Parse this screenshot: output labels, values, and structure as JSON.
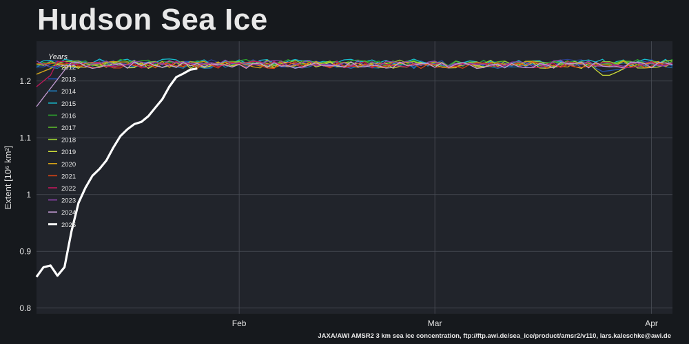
{
  "title": "Hudson Sea Ice",
  "credit": "JAXA/AWI AMSR2 3 km sea ice concentration, ftp://ftp.awi.de/sea_ice/product/amsr2/v110, lars.kaleschke@awi.de",
  "chart_data": {
    "type": "line",
    "title": "Hudson Sea Ice",
    "xlabel": "",
    "ylabel": "Extent [10⁶ km²]",
    "x_ticks": [
      "Feb",
      "Mar",
      "Apr"
    ],
    "x_tick_days": [
      32,
      60,
      91
    ],
    "xlim": [
      3,
      94
    ],
    "ylim": [
      0.79,
      1.27
    ],
    "y_ticks": [
      0.8,
      0.9,
      1,
      1.1,
      1.2
    ],
    "grid": true,
    "legend_title": "Years",
    "legend_position": "top-left",
    "series": [
      {
        "name": "2012",
        "color": "#2a3f8f",
        "base": 1.232
      },
      {
        "name": "2013",
        "color": "#2250b0",
        "base": 1.23
      },
      {
        "name": "2014",
        "color": "#1f77b4",
        "base": 1.228
      },
      {
        "name": "2015",
        "color": "#17becf",
        "base": 1.233
      },
      {
        "name": "2016",
        "color": "#2ca02c",
        "base": 1.232
      },
      {
        "name": "2017",
        "color": "#5cb82c",
        "base": 1.23
      },
      {
        "name": "2018",
        "color": "#9acd32",
        "base": 1.231
      },
      {
        "name": "2019",
        "color": "#cddc39",
        "base": 1.228
      },
      {
        "name": "2020",
        "color": "#d4a017",
        "base": 1.229
      },
      {
        "name": "2021",
        "color": "#d84315",
        "base": 1.228
      },
      {
        "name": "2022",
        "color": "#c2185b",
        "base": 1.229
      },
      {
        "name": "2023",
        "color": "#8e44ad",
        "base": 1.231
      },
      {
        "name": "2024",
        "color": "#c39bd3",
        "base": 1.228
      },
      {
        "name": "2025",
        "color": "#ffffff",
        "x": [
          3,
          4,
          5,
          6,
          7,
          8,
          9,
          10,
          11,
          12,
          13,
          14,
          15,
          16,
          17,
          18,
          19,
          20,
          21,
          22,
          23,
          24,
          25,
          26
        ],
        "values": [
          0.855,
          0.872,
          0.875,
          0.857,
          0.872,
          0.935,
          0.985,
          1.012,
          1.033,
          1.045,
          1.06,
          1.083,
          1.103,
          1.115,
          1.124,
          1.128,
          1.138,
          1.153,
          1.168,
          1.19,
          1.207,
          1.213,
          1.22,
          1.222
        ]
      }
    ]
  }
}
